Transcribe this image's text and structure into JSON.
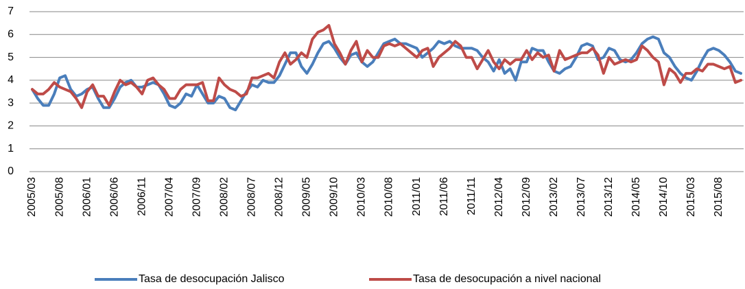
{
  "chart_data": {
    "type": "line",
    "categories": [
      "2005/03",
      null,
      null,
      null,
      null,
      "2005/08",
      null,
      null,
      null,
      null,
      "2006/01",
      null,
      null,
      null,
      null,
      "2006/06",
      null,
      null,
      null,
      null,
      "2006/11",
      null,
      null,
      null,
      null,
      "2007/04",
      null,
      null,
      null,
      null,
      "2007/09",
      null,
      null,
      null,
      null,
      "2008/02",
      null,
      null,
      null,
      null,
      "2008/07",
      null,
      null,
      null,
      null,
      "2008/12",
      null,
      null,
      null,
      null,
      "2009/05",
      null,
      null,
      null,
      null,
      "2009/10",
      null,
      null,
      null,
      null,
      "2010/03",
      null,
      null,
      null,
      null,
      "2010/08",
      null,
      null,
      null,
      null,
      "2011/01",
      null,
      null,
      null,
      null,
      "2011/06",
      null,
      null,
      null,
      null,
      "2011/11",
      null,
      null,
      null,
      null,
      "2012/04",
      null,
      null,
      null,
      null,
      "2012/09",
      null,
      null,
      null,
      null,
      "2013/02",
      null,
      null,
      null,
      null,
      "2013/07",
      null,
      null,
      null,
      null,
      "2013/12",
      null,
      null,
      null,
      null,
      "2014/05",
      null,
      null,
      null,
      null,
      "2014/10",
      null,
      null,
      null,
      null,
      "2015/03",
      null,
      null,
      null,
      null,
      "2015/08",
      null,
      null,
      null,
      null
    ],
    "series": [
      {
        "name": "Tasa de desocupación Jalisco",
        "color": "#4a7ebb",
        "values": [
          3.6,
          3.2,
          2.9,
          2.9,
          3.4,
          4.1,
          4.2,
          3.6,
          3.3,
          3.4,
          3.6,
          3.7,
          3.2,
          2.8,
          2.8,
          3.2,
          3.7,
          3.9,
          4.0,
          3.7,
          3.7,
          3.8,
          3.9,
          3.8,
          3.4,
          2.9,
          2.8,
          3.0,
          3.4,
          3.3,
          3.8,
          3.4,
          3.0,
          3.0,
          3.3,
          3.2,
          2.8,
          2.7,
          3.1,
          3.5,
          3.8,
          3.7,
          4.0,
          3.9,
          3.9,
          4.2,
          4.7,
          5.2,
          5.2,
          4.6,
          4.3,
          4.7,
          5.2,
          5.6,
          5.7,
          5.4,
          5.0,
          4.7,
          5.1,
          5.2,
          4.8,
          4.6,
          4.8,
          5.2,
          5.6,
          5.7,
          5.8,
          5.6,
          5.6,
          5.5,
          5.4,
          5.0,
          5.2,
          5.4,
          5.7,
          5.6,
          5.7,
          5.5,
          5.4,
          5.4,
          5.4,
          5.3,
          5.0,
          4.8,
          4.4,
          4.9,
          4.3,
          4.5,
          4.0,
          4.8,
          4.8,
          5.4,
          5.3,
          5.3,
          4.8,
          4.4,
          4.3,
          4.5,
          4.6,
          5.0,
          5.5,
          5.6,
          5.5,
          4.9,
          5.0,
          5.4,
          5.3,
          4.9,
          4.8,
          4.9,
          5.2,
          5.6,
          5.8,
          5.9,
          5.8,
          5.2,
          5.0,
          4.6,
          4.3,
          4.1,
          4.0,
          4.4,
          4.9,
          5.3,
          5.4,
          5.3,
          5.1,
          4.8,
          4.4,
          4.3
        ]
      },
      {
        "name": "Tasa de desocupación a nivel nacional",
        "color": "#be4b48",
        "values": [
          3.6,
          3.4,
          3.4,
          3.6,
          3.9,
          3.7,
          3.6,
          3.5,
          3.2,
          2.8,
          3.5,
          3.8,
          3.3,
          3.3,
          2.9,
          3.5,
          4.0,
          3.8,
          3.9,
          3.7,
          3.4,
          4.0,
          4.1,
          3.8,
          3.6,
          3.2,
          3.2,
          3.6,
          3.8,
          3.8,
          3.8,
          3.9,
          3.1,
          3.1,
          4.1,
          3.8,
          3.6,
          3.5,
          3.3,
          3.4,
          4.1,
          4.1,
          4.2,
          4.3,
          4.1,
          4.8,
          5.2,
          4.7,
          4.9,
          5.2,
          5.0,
          5.8,
          6.1,
          6.2,
          6.4,
          5.6,
          5.2,
          4.7,
          5.3,
          5.7,
          4.8,
          5.3,
          5.0,
          5.0,
          5.5,
          5.6,
          5.5,
          5.6,
          5.4,
          5.2,
          5.0,
          5.3,
          5.4,
          4.6,
          5.0,
          5.2,
          5.4,
          5.7,
          5.5,
          5.0,
          5.0,
          4.5,
          4.9,
          5.3,
          4.8,
          4.5,
          4.9,
          4.7,
          4.9,
          4.9,
          5.3,
          4.9,
          5.2,
          5.0,
          5.1,
          4.4,
          5.3,
          4.9,
          5.0,
          5.1,
          5.2,
          5.2,
          5.4,
          5.1,
          4.3,
          5.0,
          4.7,
          4.8,
          4.9,
          4.8,
          4.9,
          5.5,
          5.3,
          5.0,
          4.8,
          3.8,
          4.5,
          4.3,
          3.9,
          4.3,
          4.3,
          4.5,
          4.4,
          4.7,
          4.7,
          4.6,
          4.5,
          4.6,
          3.9,
          4.0
        ]
      }
    ],
    "ylim": [
      0,
      7
    ],
    "yticks": [
      0,
      1,
      2,
      3,
      4,
      5,
      6,
      7
    ],
    "grid": true,
    "legend": "bottom"
  }
}
